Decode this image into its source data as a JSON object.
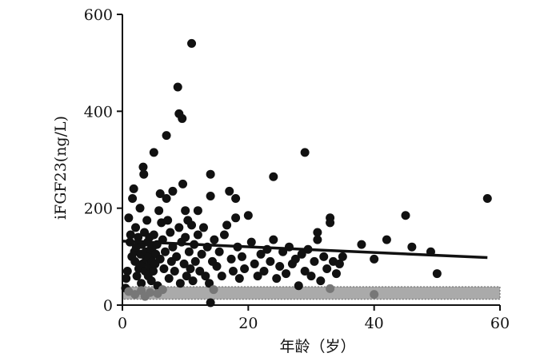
{
  "chart_data": {
    "type": "scatter",
    "title": "",
    "xlabel": "年龄（岁）",
    "ylabel": "iFGF23(ng/L)",
    "xlim": [
      0,
      60
    ],
    "ylim": [
      0,
      600
    ],
    "x_ticks": [
      "0",
      "20",
      "40",
      "60"
    ],
    "y_ticks": [
      "0",
      "200",
      "400",
      "600"
    ],
    "grid": false,
    "reference_band": {
      "y_min": 12,
      "y_max": 38,
      "color": "#aaaaaa"
    },
    "trend_line": {
      "x": [
        0,
        58
      ],
      "y": [
        132,
        98
      ],
      "color": "#111111"
    },
    "series": [
      {
        "color": "#111111",
        "points": [
          [
            0.5,
            35
          ],
          [
            0.6,
            55
          ],
          [
            0.8,
            70
          ],
          [
            1.0,
            180
          ],
          [
            1.2,
            130
          ],
          [
            1.3,
            145
          ],
          [
            1.5,
            100
          ],
          [
            1.6,
            220
          ],
          [
            1.8,
            240
          ],
          [
            1.9,
            110
          ],
          [
            2.0,
            90
          ],
          [
            2.1,
            160
          ],
          [
            2.2,
            120
          ],
          [
            2.3,
            60
          ],
          [
            2.5,
            140
          ],
          [
            2.6,
            75
          ],
          [
            2.8,
            200
          ],
          [
            2.9,
            105
          ],
          [
            3.0,
            45
          ],
          [
            3.1,
            125
          ],
          [
            3.2,
            85
          ],
          [
            3.3,
            285
          ],
          [
            3.4,
            270
          ],
          [
            3.5,
            150
          ],
          [
            3.6,
            70
          ],
          [
            3.7,
            110
          ],
          [
            3.8,
            95
          ],
          [
            3.9,
            175
          ],
          [
            4.0,
            130
          ],
          [
            4.1,
            60
          ],
          [
            4.2,
            100
          ],
          [
            4.3,
            140
          ],
          [
            4.4,
            80
          ],
          [
            4.5,
            115
          ],
          [
            4.6,
            50
          ],
          [
            4.7,
            90
          ],
          [
            4.8,
            120
          ],
          [
            4.9,
            70
          ],
          [
            5.0,
            315
          ],
          [
            5.0,
            145
          ],
          [
            5.2,
            85
          ],
          [
            5.3,
            105
          ],
          [
            5.5,
            125
          ],
          [
            5.6,
            40
          ],
          [
            5.8,
            195
          ],
          [
            6.0,
            230
          ],
          [
            6.0,
            95
          ],
          [
            6.2,
            170
          ],
          [
            6.4,
            135
          ],
          [
            6.6,
            75
          ],
          [
            6.8,
            110
          ],
          [
            7.0,
            350
          ],
          [
            7.0,
            220
          ],
          [
            7.2,
            175
          ],
          [
            7.4,
            55
          ],
          [
            7.6,
            150
          ],
          [
            7.8,
            90
          ],
          [
            8.0,
            235
          ],
          [
            8.0,
            120
          ],
          [
            8.3,
            70
          ],
          [
            8.6,
            100
          ],
          [
            8.8,
            450
          ],
          [
            9.0,
            395
          ],
          [
            9.0,
            160
          ],
          [
            9.2,
            45
          ],
          [
            9.4,
            130
          ],
          [
            9.5,
            385
          ],
          [
            9.6,
            250
          ],
          [
            9.8,
            85
          ],
          [
            10.0,
            195
          ],
          [
            10.0,
            140
          ],
          [
            10.2,
            60
          ],
          [
            10.4,
            175
          ],
          [
            10.6,
            110
          ],
          [
            10.8,
            75
          ],
          [
            11.0,
            540
          ],
          [
            11.0,
            165
          ],
          [
            11.2,
            50
          ],
          [
            11.4,
            125
          ],
          [
            11.6,
            90
          ],
          [
            12.0,
            195
          ],
          [
            12.0,
            145
          ],
          [
            12.3,
            70
          ],
          [
            12.6,
            105
          ],
          [
            12.9,
            160
          ],
          [
            13.2,
            60
          ],
          [
            13.5,
            120
          ],
          [
            13.8,
            45
          ],
          [
            14.0,
            270
          ],
          [
            14.0,
            225
          ],
          [
            14.0,
            5
          ],
          [
            14.3,
            90
          ],
          [
            14.6,
            135
          ],
          [
            15.0,
            80
          ],
          [
            15.4,
            110
          ],
          [
            15.8,
            60
          ],
          [
            16.2,
            145
          ],
          [
            16.6,
            165
          ],
          [
            17.0,
            235
          ],
          [
            17.3,
            95
          ],
          [
            17.6,
            70
          ],
          [
            18.0,
            220
          ],
          [
            18.0,
            180
          ],
          [
            18.3,
            120
          ],
          [
            18.6,
            55
          ],
          [
            19.0,
            100
          ],
          [
            19.4,
            75
          ],
          [
            20.0,
            185
          ],
          [
            20.5,
            130
          ],
          [
            21.0,
            85
          ],
          [
            21.5,
            60
          ],
          [
            22.0,
            105
          ],
          [
            22.5,
            70
          ],
          [
            23.0,
            115
          ],
          [
            23.5,
            90
          ],
          [
            24.0,
            265
          ],
          [
            24.0,
            135
          ],
          [
            24.5,
            55
          ],
          [
            25.0,
            80
          ],
          [
            25.5,
            110
          ],
          [
            26.0,
            65
          ],
          [
            26.5,
            120
          ],
          [
            27.0,
            85
          ],
          [
            27.5,
            95
          ],
          [
            28.0,
            40
          ],
          [
            28.5,
            105
          ],
          [
            29.0,
            315
          ],
          [
            29.0,
            70
          ],
          [
            29.5,
            115
          ],
          [
            30.0,
            60
          ],
          [
            30.5,
            90
          ],
          [
            31.0,
            150
          ],
          [
            31.0,
            135
          ],
          [
            31.5,
            50
          ],
          [
            32.0,
            100
          ],
          [
            32.5,
            75
          ],
          [
            33.0,
            180
          ],
          [
            33.0,
            170
          ],
          [
            33.5,
            90
          ],
          [
            34.0,
            65
          ],
          [
            34.5,
            85
          ],
          [
            35.0,
            100
          ],
          [
            38.0,
            125
          ],
          [
            40.0,
            95
          ],
          [
            42.0,
            135
          ],
          [
            45.0,
            185
          ],
          [
            46.0,
            120
          ],
          [
            49.0,
            110
          ],
          [
            50.0,
            65
          ],
          [
            58.0,
            220
          ]
        ]
      },
      {
        "color": "#777777",
        "points": [
          [
            1.0,
            28
          ],
          [
            2.0,
            22
          ],
          [
            3.0,
            30
          ],
          [
            3.6,
            18
          ],
          [
            4.4,
            26
          ],
          [
            5.6,
            24
          ],
          [
            6.4,
            32
          ],
          [
            14.5,
            32
          ],
          [
            33.0,
            34
          ],
          [
            40.0,
            22
          ]
        ]
      }
    ]
  }
}
